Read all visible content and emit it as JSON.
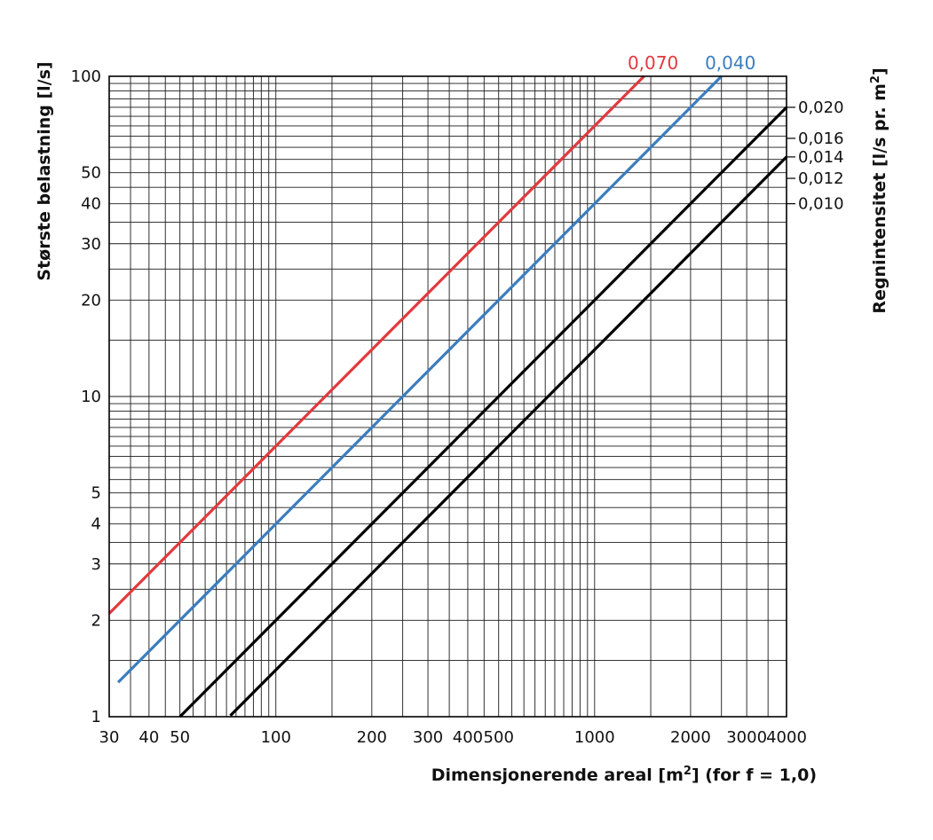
{
  "chart_data": {
    "type": "line",
    "xscale": "log",
    "yscale": "log",
    "xlim": [
      30,
      4000
    ],
    "ylim": [
      1,
      100
    ],
    "xlabel": "Dimensjonerende areal [m",
    "xlabel_sup": "2",
    "xlabel_tail": "] (for f = 1,0)",
    "ylabel": "Største belastning [l/s]",
    "y2label": "Regnintensitet [l/s pr. m",
    "y2label_sup": "2",
    "y2label_tail": "]",
    "x_ticks": [
      {
        "value": 30,
        "label": "30"
      },
      {
        "value": 40,
        "label": "40"
      },
      {
        "value": 50,
        "label": "50"
      },
      {
        "value": 100,
        "label": "100"
      },
      {
        "value": 200,
        "label": "200"
      },
      {
        "value": 300,
        "label": "300"
      },
      {
        "value": 400,
        "label": "400"
      },
      {
        "value": 500,
        "label": "500"
      },
      {
        "value": 1000,
        "label": "1000"
      },
      {
        "value": 2000,
        "label": "2000"
      },
      {
        "value": 3000,
        "label": "3000"
      },
      {
        "value": 4000,
        "label": "4000"
      }
    ],
    "y_ticks": [
      {
        "value": 1,
        "label": "1"
      },
      {
        "value": 2,
        "label": "2"
      },
      {
        "value": 3,
        "label": "3"
      },
      {
        "value": 4,
        "label": "4"
      },
      {
        "value": 5,
        "label": "5"
      },
      {
        "value": 10,
        "label": "10"
      },
      {
        "value": 20,
        "label": "20"
      },
      {
        "value": 30,
        "label": "30"
      },
      {
        "value": 40,
        "label": "40"
      },
      {
        "value": 50,
        "label": "50"
      },
      {
        "value": 100,
        "label": "100"
      }
    ],
    "right_ticks": [
      {
        "value": 0.02,
        "label": "0,020"
      },
      {
        "value": 0.016,
        "label": "0,016"
      },
      {
        "value": 0.014,
        "label": "0,014"
      },
      {
        "value": 0.012,
        "label": "0,012"
      },
      {
        "value": 0.01,
        "label": "0,010"
      }
    ],
    "series": [
      {
        "name": "0,070",
        "intensity": 0.07,
        "color": "#e03a3e",
        "x_start": 30,
        "x_end": 1430,
        "show_label": true
      },
      {
        "name": "0,040",
        "intensity": 0.04,
        "color": "#3a7dbf",
        "x_start": 32,
        "x_end": 2500,
        "show_label": true
      },
      {
        "name": "0,020",
        "intensity": 0.02,
        "color": "#000000",
        "x_start": 50,
        "x_end": 4000,
        "show_label": false
      },
      {
        "name": "0,014",
        "intensity": 0.014,
        "color": "#000000",
        "x_start": 72,
        "x_end": 4000,
        "show_label": false
      }
    ]
  }
}
